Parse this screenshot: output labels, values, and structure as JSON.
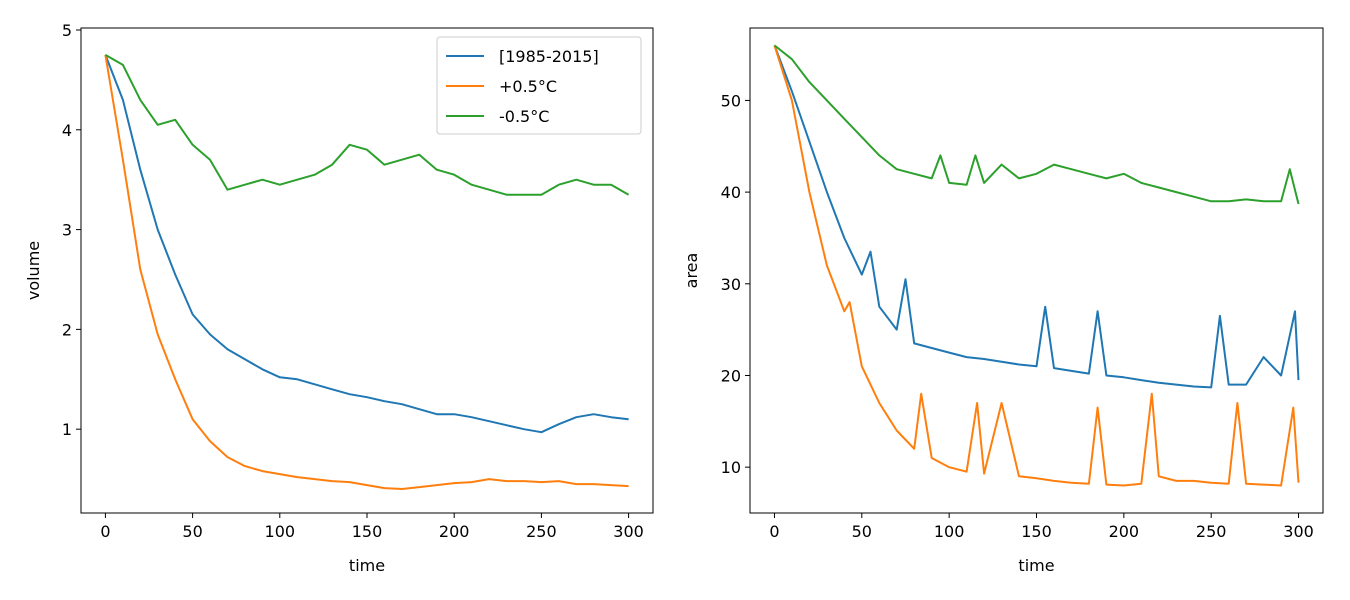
{
  "chart_data": [
    {
      "type": "line",
      "xlabel": "time",
      "ylabel": "volume",
      "xlim": [
        -14,
        314
      ],
      "ylim": [
        0.16,
        5.02
      ],
      "xticks": [
        0,
        50,
        100,
        150,
        200,
        250,
        300
      ],
      "yticks": [
        1,
        2,
        3,
        4,
        5
      ],
      "grid": false,
      "legend": {
        "placement": "top-right",
        "entries": [
          "[1985-2015]",
          "+0.5°C",
          "-0.5°C"
        ]
      },
      "x_step": 10,
      "series": [
        {
          "name": "[1985-2015]",
          "color": "#1f77b4",
          "x": [
            0,
            10,
            20,
            30,
            40,
            50,
            60,
            70,
            80,
            90,
            100,
            110,
            120,
            130,
            140,
            150,
            160,
            170,
            180,
            190,
            200,
            210,
            220,
            230,
            240,
            250,
            260,
            270,
            280,
            290,
            300
          ],
          "values": [
            4.75,
            4.3,
            3.6,
            3.0,
            2.55,
            2.15,
            1.95,
            1.8,
            1.7,
            1.6,
            1.52,
            1.5,
            1.45,
            1.4,
            1.35,
            1.32,
            1.28,
            1.25,
            1.2,
            1.15,
            1.15,
            1.12,
            1.08,
            1.04,
            1.0,
            0.97,
            1.05,
            1.12,
            1.15,
            1.12,
            1.1
          ]
        },
        {
          "name": "+0.5°C",
          "color": "#ff7f0e",
          "x": [
            0,
            10,
            20,
            30,
            40,
            50,
            60,
            70,
            80,
            90,
            100,
            110,
            120,
            130,
            140,
            150,
            160,
            170,
            180,
            190,
            200,
            210,
            220,
            230,
            240,
            250,
            260,
            270,
            280,
            290,
            300
          ],
          "values": [
            4.75,
            3.7,
            2.6,
            1.95,
            1.5,
            1.1,
            0.88,
            0.72,
            0.63,
            0.58,
            0.55,
            0.52,
            0.5,
            0.48,
            0.47,
            0.44,
            0.41,
            0.4,
            0.42,
            0.44,
            0.46,
            0.47,
            0.5,
            0.48,
            0.48,
            0.47,
            0.48,
            0.45,
            0.45,
            0.44,
            0.43
          ]
        },
        {
          "name": "-0.5°C",
          "color": "#2ca02c",
          "x": [
            0,
            10,
            20,
            30,
            40,
            50,
            60,
            70,
            80,
            90,
            100,
            110,
            120,
            130,
            140,
            150,
            160,
            170,
            180,
            190,
            200,
            210,
            220,
            230,
            240,
            250,
            260,
            270,
            280,
            290,
            300
          ],
          "values": [
            4.75,
            4.65,
            4.3,
            4.05,
            4.1,
            3.85,
            3.7,
            3.4,
            3.45,
            3.5,
            3.45,
            3.5,
            3.55,
            3.65,
            3.85,
            3.8,
            3.65,
            3.7,
            3.75,
            3.6,
            3.55,
            3.45,
            3.4,
            3.35,
            3.35,
            3.35,
            3.45,
            3.5,
            3.45,
            3.45,
            3.35
          ]
        }
      ]
    },
    {
      "type": "line",
      "xlabel": "time",
      "ylabel": "area",
      "xlim": [
        -14,
        314
      ],
      "ylim": [
        5,
        57.9
      ],
      "xticks": [
        0,
        50,
        100,
        150,
        200,
        250,
        300
      ],
      "yticks": [
        10,
        20,
        30,
        40,
        50
      ],
      "grid": false,
      "series": [
        {
          "color": "#1f77b4",
          "x": [
            0,
            10,
            20,
            30,
            40,
            50,
            55,
            60,
            70,
            75,
            80,
            90,
            100,
            110,
            120,
            130,
            140,
            150,
            155,
            160,
            170,
            180,
            185,
            190,
            200,
            210,
            220,
            230,
            240,
            250,
            255,
            260,
            270,
            280,
            290,
            298,
            300
          ],
          "values": [
            56,
            51,
            45.5,
            40,
            35,
            31,
            33.5,
            27.5,
            25,
            30.5,
            23.5,
            23,
            22.5,
            22,
            21.8,
            21.5,
            21.2,
            21,
            27.5,
            20.8,
            20.5,
            20.2,
            27,
            20,
            19.8,
            19.5,
            19.2,
            19,
            18.8,
            18.7,
            26.5,
            19,
            19,
            22,
            20,
            27,
            19.5
          ]
        },
        {
          "color": "#ff7f0e",
          "x": [
            0,
            10,
            20,
            30,
            40,
            43,
            50,
            60,
            70,
            80,
            84,
            90,
            100,
            110,
            116,
            120,
            130,
            140,
            150,
            160,
            170,
            180,
            185,
            190,
            200,
            210,
            216,
            220,
            230,
            240,
            250,
            260,
            265,
            270,
            280,
            290,
            297,
            300
          ],
          "values": [
            56,
            50,
            40,
            32,
            27,
            28,
            21,
            17,
            14,
            12,
            18,
            11,
            10,
            9.5,
            17,
            9.3,
            17,
            9,
            8.8,
            8.5,
            8.3,
            8.2,
            16.5,
            8.1,
            8.0,
            8.2,
            18,
            9,
            8.5,
            8.5,
            8.3,
            8.2,
            17,
            8.2,
            8.1,
            8.0,
            16.5,
            8.3
          ]
        },
        {
          "color": "#2ca02c",
          "x": [
            0,
            10,
            20,
            30,
            40,
            50,
            60,
            70,
            80,
            90,
            95,
            100,
            110,
            115,
            120,
            130,
            140,
            150,
            160,
            170,
            180,
            190,
            200,
            210,
            220,
            230,
            240,
            250,
            260,
            270,
            280,
            290,
            295,
            300
          ],
          "values": [
            56,
            54.5,
            52,
            50,
            48,
            46,
            44,
            42.5,
            42,
            41.5,
            44,
            41,
            40.8,
            44,
            41,
            43,
            41.5,
            42,
            43,
            42.5,
            42,
            41.5,
            42,
            41,
            40.5,
            40,
            39.5,
            39,
            39,
            39.2,
            39,
            39,
            42.5,
            38.7
          ]
        }
      ]
    }
  ]
}
